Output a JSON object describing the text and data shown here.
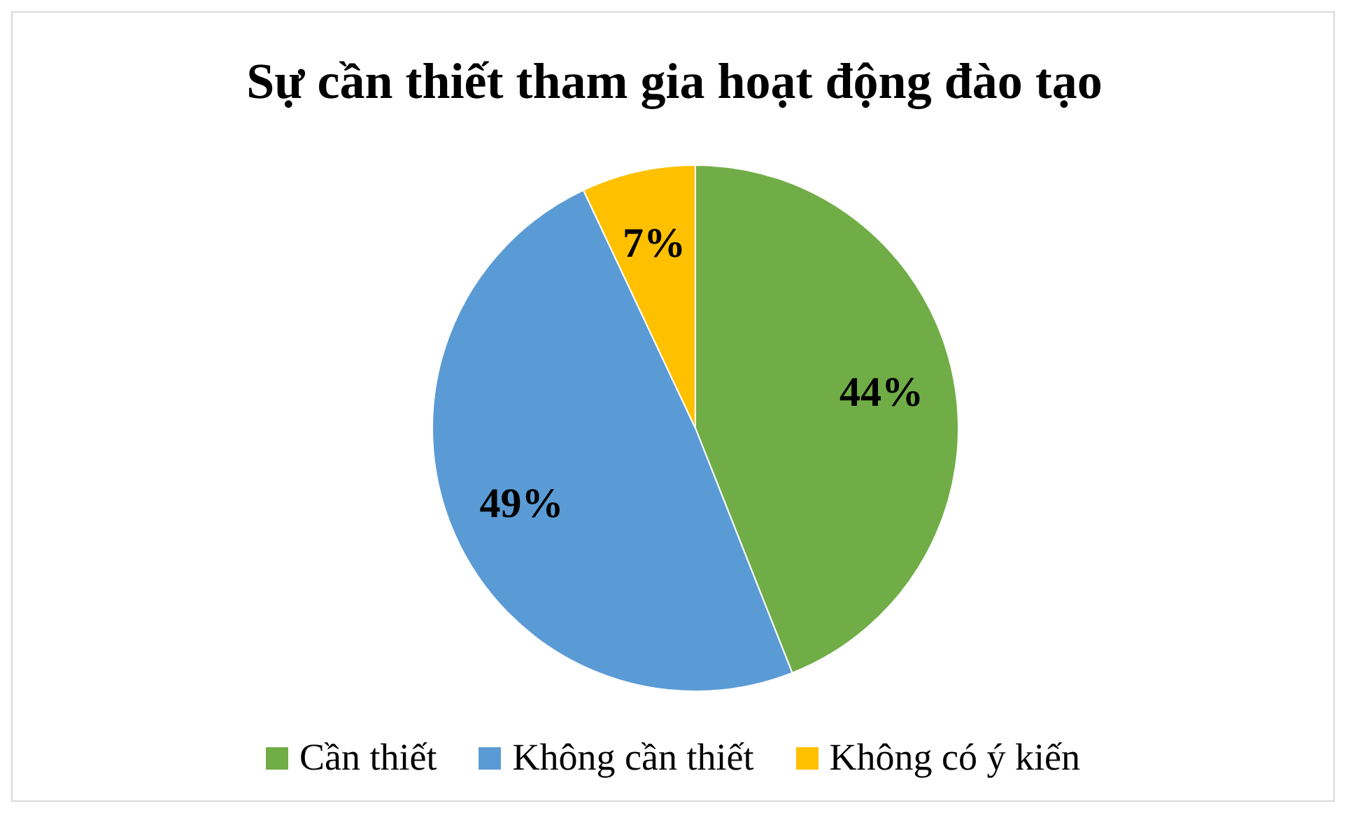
{
  "chart_data": {
    "type": "pie",
    "title": "Sự cần thiết tham gia hoạt động đào tạo",
    "categories": [
      "Cần thiết",
      "Không cần thiết",
      "Không có ý kiến"
    ],
    "values": [
      44,
      49,
      7
    ],
    "colors": [
      "#70ad47",
      "#5b9bd5",
      "#ffc000"
    ],
    "value_labels": [
      "44%",
      "49%",
      "7%"
    ],
    "legend": "bottom"
  }
}
